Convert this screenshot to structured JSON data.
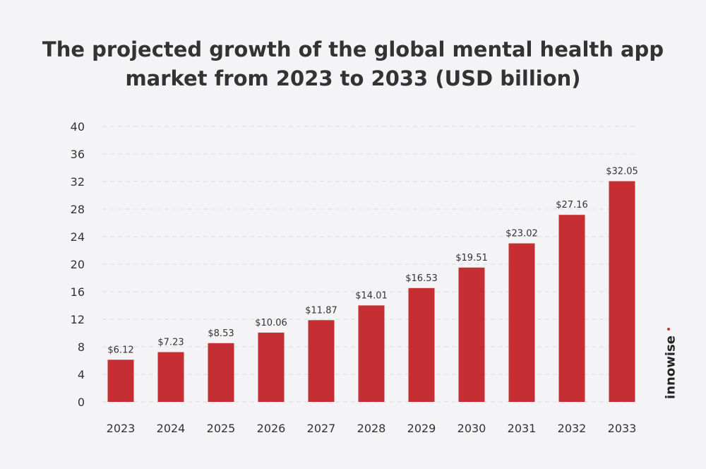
{
  "chart_data": {
    "type": "bar",
    "title_lines": [
      "The projected growth of the global mental health app",
      "market from 2023 to 2033 (USD billion)"
    ],
    "categories": [
      "2023",
      "2024",
      "2025",
      "2026",
      "2027",
      "2028",
      "2029",
      "2030",
      "2031",
      "2032",
      "2033"
    ],
    "values": [
      6.12,
      7.23,
      8.53,
      10.06,
      11.87,
      14.01,
      16.53,
      19.51,
      23.02,
      27.16,
      32.05
    ],
    "data_labels": [
      "$6.12",
      "$7.23",
      "$8.53",
      "$10.06",
      "$11.87",
      "$14.01",
      "$16.53",
      "$19.51",
      "$23.02",
      "$27.16",
      "$32.05"
    ],
    "yticks": [
      "0",
      "4",
      "8",
      "12",
      "16",
      "20",
      "24",
      "28",
      "32",
      "36",
      "40"
    ],
    "ylim": [
      0,
      40
    ],
    "xlabel": "",
    "ylabel": "",
    "grid": true,
    "bar_color": "#c52f33"
  },
  "logo": {
    "text": "innowise",
    "dot_color": "#d42a2f"
  }
}
